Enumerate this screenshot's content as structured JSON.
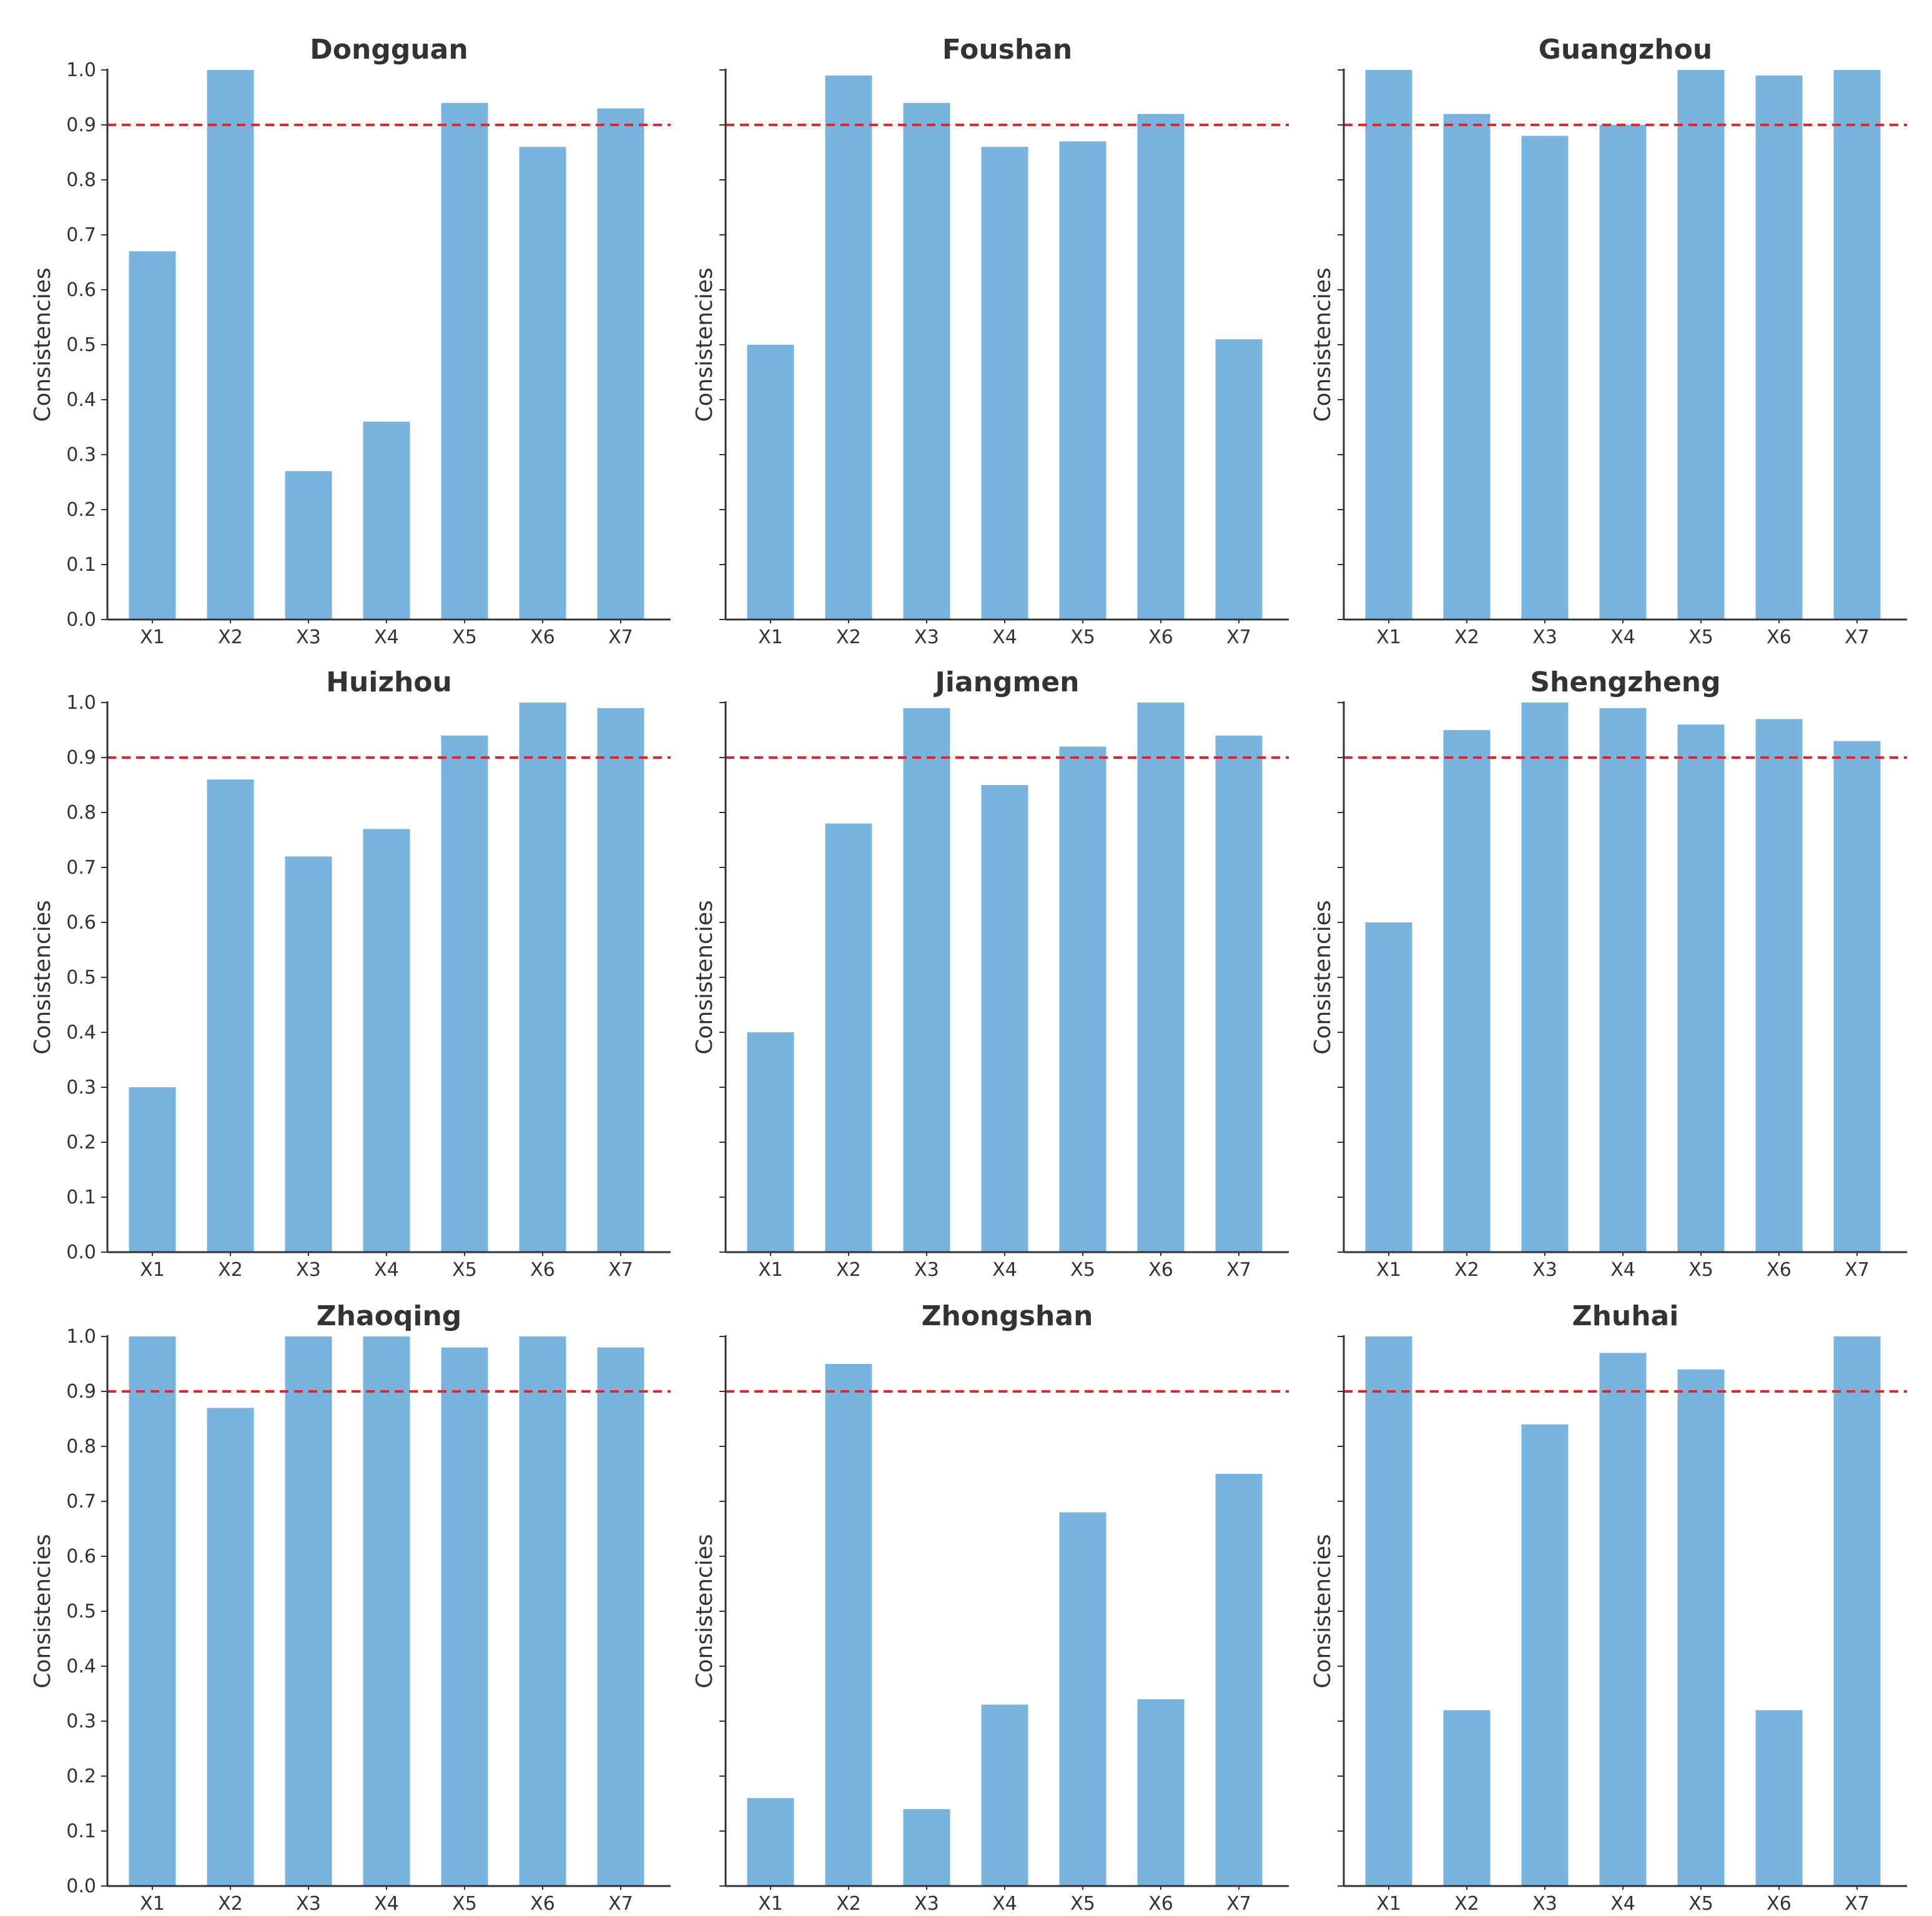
{
  "colors": {
    "bar": "#79b4df",
    "threshold": "#e8242a",
    "axis": "#333333"
  },
  "chart_data": [
    {
      "type": "bar",
      "title": "Dongguan",
      "categories": [
        "X1",
        "X2",
        "X3",
        "X4",
        "X5",
        "X6",
        "X7"
      ],
      "values": [
        0.67,
        1.0,
        0.27,
        0.36,
        0.94,
        0.86,
        0.93
      ],
      "xlabel": "",
      "ylabel": "Consistencies",
      "ylim": [
        0.0,
        1.0
      ],
      "threshold": 0.9,
      "yticks": [
        "0.0",
        "0.1",
        "0.2",
        "0.3",
        "0.4",
        "0.5",
        "0.6",
        "0.7",
        "0.8",
        "0.9",
        "1.0"
      ],
      "show_ytick_labels": true
    },
    {
      "type": "bar",
      "title": "Foushan",
      "categories": [
        "X1",
        "X2",
        "X3",
        "X4",
        "X5",
        "X6",
        "X7"
      ],
      "values": [
        0.5,
        0.99,
        0.94,
        0.86,
        0.87,
        0.92,
        0.51
      ],
      "xlabel": "",
      "ylabel": "Consistencies",
      "ylim": [
        0.0,
        1.0
      ],
      "threshold": 0.9,
      "yticks": [
        "0.0",
        "0.1",
        "0.2",
        "0.3",
        "0.4",
        "0.5",
        "0.6",
        "0.7",
        "0.8",
        "0.9",
        "1.0"
      ],
      "show_ytick_labels": false
    },
    {
      "type": "bar",
      "title": "Guangzhou",
      "categories": [
        "X1",
        "X2",
        "X3",
        "X4",
        "X5",
        "X6",
        "X7"
      ],
      "values": [
        1.0,
        0.92,
        0.88,
        0.9,
        1.0,
        0.99,
        1.0
      ],
      "xlabel": "",
      "ylabel": "Consistencies",
      "ylim": [
        0.0,
        1.0
      ],
      "threshold": 0.9,
      "yticks": [
        "0.0",
        "0.1",
        "0.2",
        "0.3",
        "0.4",
        "0.5",
        "0.6",
        "0.7",
        "0.8",
        "0.9",
        "1.0"
      ],
      "show_ytick_labels": false
    },
    {
      "type": "bar",
      "title": "Huizhou",
      "categories": [
        "X1",
        "X2",
        "X3",
        "X4",
        "X5",
        "X6",
        "X7"
      ],
      "values": [
        0.3,
        0.86,
        0.72,
        0.77,
        0.94,
        1.0,
        0.99
      ],
      "xlabel": "",
      "ylabel": "Consistencies",
      "ylim": [
        0.0,
        1.0
      ],
      "threshold": 0.9,
      "yticks": [
        "0.0",
        "0.1",
        "0.2",
        "0.3",
        "0.4",
        "0.5",
        "0.6",
        "0.7",
        "0.8",
        "0.9",
        "1.0"
      ],
      "show_ytick_labels": true
    },
    {
      "type": "bar",
      "title": "Jiangmen",
      "categories": [
        "X1",
        "X2",
        "X3",
        "X4",
        "X5",
        "X6",
        "X7"
      ],
      "values": [
        0.4,
        0.78,
        0.99,
        0.85,
        0.92,
        1.0,
        0.94
      ],
      "xlabel": "",
      "ylabel": "Consistencies",
      "ylim": [
        0.0,
        1.0
      ],
      "threshold": 0.9,
      "yticks": [
        "0.0",
        "0.1",
        "0.2",
        "0.3",
        "0.4",
        "0.5",
        "0.6",
        "0.7",
        "0.8",
        "0.9",
        "1.0"
      ],
      "show_ytick_labels": false
    },
    {
      "type": "bar",
      "title": "Shengzheng",
      "categories": [
        "X1",
        "X2",
        "X3",
        "X4",
        "X5",
        "X6",
        "X7"
      ],
      "values": [
        0.6,
        0.95,
        1.0,
        0.99,
        0.96,
        0.97,
        0.93
      ],
      "xlabel": "",
      "ylabel": "Consistencies",
      "ylim": [
        0.0,
        1.0
      ],
      "threshold": 0.9,
      "yticks": [
        "0.0",
        "0.1",
        "0.2",
        "0.3",
        "0.4",
        "0.5",
        "0.6",
        "0.7",
        "0.8",
        "0.9",
        "1.0"
      ],
      "show_ytick_labels": false
    },
    {
      "type": "bar",
      "title": "Zhaoqing",
      "categories": [
        "X1",
        "X2",
        "X3",
        "X4",
        "X5",
        "X6",
        "X7"
      ],
      "values": [
        1.0,
        0.87,
        1.0,
        1.0,
        0.98,
        1.0,
        0.98
      ],
      "xlabel": "",
      "ylabel": "Consistencies",
      "ylim": [
        0.0,
        1.0
      ],
      "threshold": 0.9,
      "yticks": [
        "0.0",
        "0.1",
        "0.2",
        "0.3",
        "0.4",
        "0.5",
        "0.6",
        "0.7",
        "0.8",
        "0.9",
        "1.0"
      ],
      "show_ytick_labels": true
    },
    {
      "type": "bar",
      "title": "Zhongshan",
      "categories": [
        "X1",
        "X2",
        "X3",
        "X4",
        "X5",
        "X6",
        "X7"
      ],
      "values": [
        0.16,
        0.95,
        0.14,
        0.33,
        0.68,
        0.34,
        0.75
      ],
      "xlabel": "",
      "ylabel": "Consistencies",
      "ylim": [
        0.0,
        1.0
      ],
      "threshold": 0.9,
      "yticks": [
        "0.0",
        "0.1",
        "0.2",
        "0.3",
        "0.4",
        "0.5",
        "0.6",
        "0.7",
        "0.8",
        "0.9",
        "1.0"
      ],
      "show_ytick_labels": false
    },
    {
      "type": "bar",
      "title": "Zhuhai",
      "categories": [
        "X1",
        "X2",
        "X3",
        "X4",
        "X5",
        "X6",
        "X7"
      ],
      "values": [
        1.0,
        0.32,
        0.84,
        0.97,
        0.94,
        0.32,
        1.0
      ],
      "xlabel": "",
      "ylabel": "Consistencies",
      "ylim": [
        0.0,
        1.0
      ],
      "threshold": 0.9,
      "yticks": [
        "0.0",
        "0.1",
        "0.2",
        "0.3",
        "0.4",
        "0.5",
        "0.6",
        "0.7",
        "0.8",
        "0.9",
        "1.0"
      ],
      "show_ytick_labels": false
    }
  ]
}
